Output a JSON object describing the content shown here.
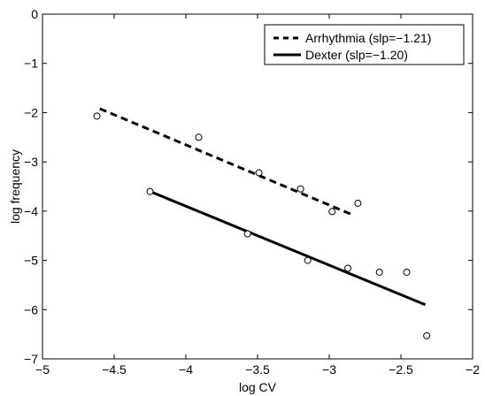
{
  "chart_data": {
    "type": "scatter",
    "xlabel": "log CV",
    "ylabel": "log frequency",
    "xlim": [
      -5,
      -2
    ],
    "ylim": [
      -7,
      0
    ],
    "xticks": [
      -5,
      -4.5,
      -4,
      -3.5,
      -3,
      -2.5,
      -2
    ],
    "xtick_labels": [
      "−5",
      "−4.5",
      "−4",
      "−3.5",
      "−3",
      "−2.5",
      "−2"
    ],
    "yticks": [
      0,
      -1,
      -2,
      -3,
      -4,
      -5,
      -6,
      -7
    ],
    "ytick_labels": [
      "0",
      "−1",
      "−2",
      "−3",
      "−4",
      "−5",
      "−6",
      "−7"
    ],
    "grid": false,
    "legend_position": "top-right",
    "series": [
      {
        "name": "Arrhythmia (slp=−1.21)",
        "line_style": "dashed",
        "color": "#000000",
        "points": [
          {
            "x": -4.62,
            "y": -2.07
          },
          {
            "x": -3.91,
            "y": -2.5
          },
          {
            "x": -3.49,
            "y": -3.22
          },
          {
            "x": -3.2,
            "y": -3.55
          },
          {
            "x": -2.98,
            "y": -4.01
          },
          {
            "x": -2.8,
            "y": -3.84
          }
        ],
        "fit": [
          {
            "x": -4.6,
            "y": -1.92
          },
          {
            "x": -2.85,
            "y": -4.06
          }
        ]
      },
      {
        "name": "Dexter (slp=−1.20)",
        "line_style": "solid",
        "color": "#000000",
        "points": [
          {
            "x": -4.25,
            "y": -3.6
          },
          {
            "x": -3.57,
            "y": -4.46
          },
          {
            "x": -3.15,
            "y": -5.0
          },
          {
            "x": -2.87,
            "y": -5.16
          },
          {
            "x": -2.65,
            "y": -5.24
          },
          {
            "x": -2.46,
            "y": -5.24
          },
          {
            "x": -2.32,
            "y": -6.53
          }
        ],
        "fit": [
          {
            "x": -4.25,
            "y": -3.6
          },
          {
            "x": -2.33,
            "y": -5.9
          }
        ]
      }
    ]
  }
}
